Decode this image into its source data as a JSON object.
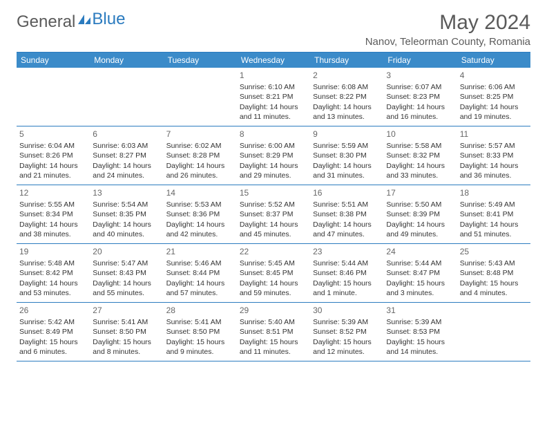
{
  "brand": {
    "part1": "General",
    "part2": "Blue"
  },
  "title": "May 2024",
  "location": "Nanov, Teleorman County, Romania",
  "colors": {
    "header_bg": "#3b8bc9",
    "header_text": "#ffffff",
    "border": "#2b7bbf",
    "text": "#333333",
    "muted": "#666666",
    "brand_gray": "#5a5a5a",
    "brand_blue": "#2b7bbf"
  },
  "days_of_week": [
    "Sunday",
    "Monday",
    "Tuesday",
    "Wednesday",
    "Thursday",
    "Friday",
    "Saturday"
  ],
  "weeks": [
    [
      null,
      null,
      null,
      {
        "n": "1",
        "sr": "6:10 AM",
        "ss": "8:21 PM",
        "dl": "14 hours and 11 minutes."
      },
      {
        "n": "2",
        "sr": "6:08 AM",
        "ss": "8:22 PM",
        "dl": "14 hours and 13 minutes."
      },
      {
        "n": "3",
        "sr": "6:07 AM",
        "ss": "8:23 PM",
        "dl": "14 hours and 16 minutes."
      },
      {
        "n": "4",
        "sr": "6:06 AM",
        "ss": "8:25 PM",
        "dl": "14 hours and 19 minutes."
      }
    ],
    [
      {
        "n": "5",
        "sr": "6:04 AM",
        "ss": "8:26 PM",
        "dl": "14 hours and 21 minutes."
      },
      {
        "n": "6",
        "sr": "6:03 AM",
        "ss": "8:27 PM",
        "dl": "14 hours and 24 minutes."
      },
      {
        "n": "7",
        "sr": "6:02 AM",
        "ss": "8:28 PM",
        "dl": "14 hours and 26 minutes."
      },
      {
        "n": "8",
        "sr": "6:00 AM",
        "ss": "8:29 PM",
        "dl": "14 hours and 29 minutes."
      },
      {
        "n": "9",
        "sr": "5:59 AM",
        "ss": "8:30 PM",
        "dl": "14 hours and 31 minutes."
      },
      {
        "n": "10",
        "sr": "5:58 AM",
        "ss": "8:32 PM",
        "dl": "14 hours and 33 minutes."
      },
      {
        "n": "11",
        "sr": "5:57 AM",
        "ss": "8:33 PM",
        "dl": "14 hours and 36 minutes."
      }
    ],
    [
      {
        "n": "12",
        "sr": "5:55 AM",
        "ss": "8:34 PM",
        "dl": "14 hours and 38 minutes."
      },
      {
        "n": "13",
        "sr": "5:54 AM",
        "ss": "8:35 PM",
        "dl": "14 hours and 40 minutes."
      },
      {
        "n": "14",
        "sr": "5:53 AM",
        "ss": "8:36 PM",
        "dl": "14 hours and 42 minutes."
      },
      {
        "n": "15",
        "sr": "5:52 AM",
        "ss": "8:37 PM",
        "dl": "14 hours and 45 minutes."
      },
      {
        "n": "16",
        "sr": "5:51 AM",
        "ss": "8:38 PM",
        "dl": "14 hours and 47 minutes."
      },
      {
        "n": "17",
        "sr": "5:50 AM",
        "ss": "8:39 PM",
        "dl": "14 hours and 49 minutes."
      },
      {
        "n": "18",
        "sr": "5:49 AM",
        "ss": "8:41 PM",
        "dl": "14 hours and 51 minutes."
      }
    ],
    [
      {
        "n": "19",
        "sr": "5:48 AM",
        "ss": "8:42 PM",
        "dl": "14 hours and 53 minutes."
      },
      {
        "n": "20",
        "sr": "5:47 AM",
        "ss": "8:43 PM",
        "dl": "14 hours and 55 minutes."
      },
      {
        "n": "21",
        "sr": "5:46 AM",
        "ss": "8:44 PM",
        "dl": "14 hours and 57 minutes."
      },
      {
        "n": "22",
        "sr": "5:45 AM",
        "ss": "8:45 PM",
        "dl": "14 hours and 59 minutes."
      },
      {
        "n": "23",
        "sr": "5:44 AM",
        "ss": "8:46 PM",
        "dl": "15 hours and 1 minute."
      },
      {
        "n": "24",
        "sr": "5:44 AM",
        "ss": "8:47 PM",
        "dl": "15 hours and 3 minutes."
      },
      {
        "n": "25",
        "sr": "5:43 AM",
        "ss": "8:48 PM",
        "dl": "15 hours and 4 minutes."
      }
    ],
    [
      {
        "n": "26",
        "sr": "5:42 AM",
        "ss": "8:49 PM",
        "dl": "15 hours and 6 minutes."
      },
      {
        "n": "27",
        "sr": "5:41 AM",
        "ss": "8:50 PM",
        "dl": "15 hours and 8 minutes."
      },
      {
        "n": "28",
        "sr": "5:41 AM",
        "ss": "8:50 PM",
        "dl": "15 hours and 9 minutes."
      },
      {
        "n": "29",
        "sr": "5:40 AM",
        "ss": "8:51 PM",
        "dl": "15 hours and 11 minutes."
      },
      {
        "n": "30",
        "sr": "5:39 AM",
        "ss": "8:52 PM",
        "dl": "15 hours and 12 minutes."
      },
      {
        "n": "31",
        "sr": "5:39 AM",
        "ss": "8:53 PM",
        "dl": "15 hours and 14 minutes."
      },
      null
    ]
  ],
  "labels": {
    "sunrise": "Sunrise:",
    "sunset": "Sunset:",
    "daylight": "Daylight:"
  }
}
